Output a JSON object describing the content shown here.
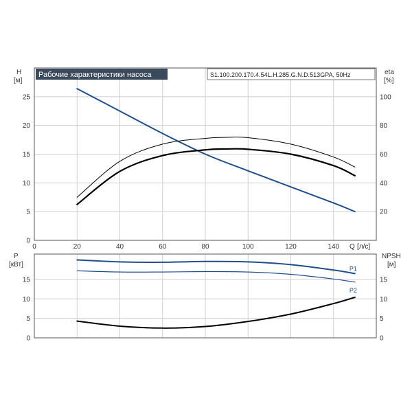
{
  "chart_data": [
    {
      "type": "line",
      "title": "Рабочие характеристики насоса",
      "subtitle": "S1.100.200.170.4.54L.H.285.G.N.D.513GPA, 50Hz",
      "xlabel": "Q",
      "xunit": "[л/с]",
      "ylabel_left": "H",
      "yunit_left": "[м]",
      "ylabel_right": "eta",
      "yunit_right": "[%]",
      "xlim": [
        0,
        160
      ],
      "ylim_left": [
        0,
        30
      ],
      "ylim_right": [
        0,
        120
      ],
      "x_ticks": [
        0,
        20,
        40,
        60,
        80,
        100,
        120,
        140
      ],
      "y_ticks_left": [
        0,
        5,
        10,
        15,
        20,
        25
      ],
      "y_ticks_right": [
        20,
        40,
        60,
        80,
        100
      ],
      "grid": true,
      "series": [
        {
          "axis": "left",
          "color": "#1f4e8c",
          "x": [
            20,
            40,
            60,
            80,
            100,
            120,
            140,
            150
          ],
          "y": [
            26.4,
            22.5,
            18.6,
            15.0,
            12.1,
            9.3,
            6.5,
            5.0
          ]
        },
        {
          "axis": "right",
          "color": "#000000",
          "x": [
            20,
            40,
            60,
            80,
            90,
            100,
            120,
            140,
            150
          ],
          "y": [
            30,
            55,
            67,
            71,
            71.7,
            71.5,
            67,
            58,
            51
          ]
        },
        {
          "axis": "right",
          "color": "#000000",
          "x": [
            20,
            40,
            60,
            80,
            90,
            100,
            120,
            140,
            150
          ],
          "y": [
            25,
            48,
            59,
            63,
            63.6,
            63.4,
            60,
            52,
            45
          ]
        }
      ]
    },
    {
      "type": "line",
      "ylabel_left": "P",
      "yunit_left": "[кВт]",
      "ylabel_right": "NPSH",
      "yunit_right": "[м]",
      "xlim": [
        0,
        160
      ],
      "ylim_left": [
        0,
        21.5
      ],
      "ylim_right": [
        0,
        21.5
      ],
      "y_ticks_left": [
        0,
        5,
        10,
        15
      ],
      "y_ticks_right": [
        0,
        5,
        10,
        15
      ],
      "grid": true,
      "series": [
        {
          "name": "P1",
          "axis": "left",
          "color": "#1f4e8c",
          "x": [
            20,
            40,
            60,
            80,
            100,
            120,
            140,
            150
          ],
          "y": [
            20.0,
            19.5,
            19.4,
            19.6,
            19.5,
            18.8,
            17.4,
            16.5
          ]
        },
        {
          "name": "P2",
          "axis": "left",
          "color": "#1f4e8c",
          "x": [
            20,
            40,
            60,
            80,
            100,
            120,
            140,
            150
          ],
          "y": [
            17.2,
            16.9,
            16.9,
            17.0,
            16.9,
            16.3,
            15.1,
            14.3
          ]
        },
        {
          "axis": "right",
          "color": "#000000",
          "x": [
            20,
            40,
            60,
            80,
            100,
            120,
            140,
            150
          ],
          "y": [
            4.3,
            3.0,
            2.5,
            2.9,
            4.2,
            6.1,
            8.8,
            10.4
          ]
        }
      ]
    }
  ]
}
